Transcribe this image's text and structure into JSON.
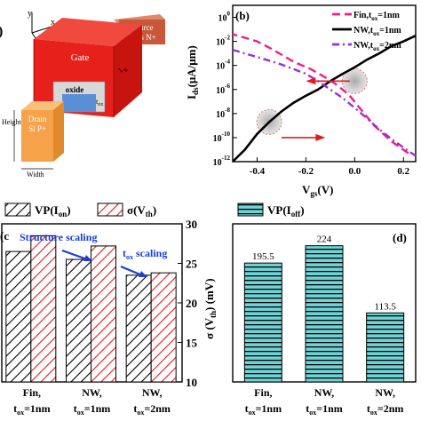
{
  "panel_a": {
    "partial_label": ")",
    "axis_x": "x",
    "axis_y": "y",
    "axis_z": "z",
    "source_line1": "Source",
    "source_line2": "InAs N+",
    "gate": "Gate",
    "oxide": "oxide",
    "t_ox": "t",
    "t_ox_sub": "ox",
    "drain_line1": "Drain",
    "drain_line2": "Si P+",
    "height": "Height",
    "width": "Width",
    "l_g": "L",
    "l_g_sub": "g",
    "colors": {
      "gate": "#e8201c",
      "drain": "#f5a24a",
      "source": "#c9573a",
      "oxide": "#d8d8d8",
      "body": "#5a8fd6"
    }
  },
  "chart_data": [
    {
      "panel": "(b)",
      "type": "line",
      "ylabel_main": "I",
      "ylabel_sub": "ds",
      "ylabel_unit": "(μA/μm)",
      "xlabel_main": "V",
      "xlabel_sub": "gs",
      "xlabel_unit": "(V)",
      "y_scale": "log",
      "ylim": [
        1e-12,
        10.0
      ],
      "xlim": [
        -0.5,
        0.25
      ],
      "x_ticks": [
        "-0.4",
        "-0.2",
        "0.0",
        "0.2"
      ],
      "y_ticks": [
        "10",
        "10",
        "10",
        "10",
        "10",
        "10",
        "10"
      ],
      "y_tick_exps": [
        "0",
        "-2",
        "-4",
        "-6",
        "-8",
        "-10",
        "-12"
      ],
      "legend_position": "top-right",
      "series": [
        {
          "name": "Fin,t",
          "name_sub": "ox",
          "name_tail": "=1nm",
          "color": "#ee1c8e",
          "dash": "dash",
          "x": [
            0.22,
            0.15,
            0.08,
            0.02,
            -0.02,
            -0.05,
            -0.08,
            -0.12,
            -0.18,
            -0.25,
            -0.3,
            -0.35,
            -0.4,
            -0.45,
            -0.5
          ],
          "y": [
            5e-12,
            5e-11,
            1e-09,
            3e-08,
            3e-07,
            1e-06,
            3e-06,
            1e-05,
            5e-05,
            0.0002,
            0.0008,
            0.003,
            0.01,
            0.02,
            0.04
          ]
        },
        {
          "name": "NW,t",
          "name_sub": "ox",
          "name_tail": "=1nm",
          "color": "#000000",
          "dash": "solid",
          "x": [
            -0.5,
            -0.45,
            -0.4,
            -0.35,
            -0.3,
            -0.25,
            -0.2,
            -0.15,
            -0.1,
            -0.05,
            0.0,
            0.05,
            0.1,
            0.15,
            0.2,
            0.25
          ],
          "y": [
            1e-12,
            1e-11,
            2e-10,
            2e-09,
            1.5e-08,
            8e-08,
            3e-07,
            1e-06,
            5e-06,
            2e-05,
            7e-05,
            0.0003,
            0.001,
            0.004,
            0.01,
            0.03
          ]
        },
        {
          "name": "NW,t",
          "name_sub": "ox",
          "name_tail": "=2nm",
          "color": "#9b30d9",
          "dash": "dashdot",
          "x": [
            -0.5,
            -0.45,
            -0.4,
            -0.35,
            -0.3,
            -0.25,
            -0.2,
            -0.15,
            -0.1,
            -0.05,
            0.0,
            0.05,
            0.1,
            0.15,
            0.2,
            0.25
          ],
          "y": [
            0.002,
            0.001,
            0.0005,
            0.00025,
            0.00012,
            5e-05,
            2e-05,
            5e-06,
            1e-06,
            2e-07,
            3e-08,
            4e-09,
            5e-10,
            8e-11,
            1.5e-11,
            3e-12
          ]
        }
      ]
    },
    {
      "panel": "(c)",
      "type": "bar",
      "categories": [
        "Fin,",
        "NW,",
        "NW,"
      ],
      "category_sub_main": [
        "t",
        "t",
        "t"
      ],
      "category_sub_sub": [
        "ox",
        "ox",
        "ox"
      ],
      "category_sub_tail": [
        "=1nm",
        "=1nm",
        "=2nm"
      ],
      "legend": [
        {
          "name": "VP(I",
          "sub": "on",
          "tail": ")",
          "pattern": "hatch-black"
        },
        {
          "name": "σ(V",
          "sub": "th",
          "tail": ")",
          "pattern": "hatch-red"
        }
      ],
      "ylabel_main": "σ (V",
      "ylabel_sub": "th",
      "ylabel_unit": ") (mV)",
      "ylim": [
        10,
        30
      ],
      "y_ticks": [
        "10",
        "15",
        "20",
        "25",
        "30"
      ],
      "series": [
        {
          "name": "VP(Ion)",
          "values": [
            26.5,
            25.5,
            23.5
          ]
        },
        {
          "name": "σ(Vth)",
          "values": [
            28.5,
            27.2,
            23.8
          ]
        }
      ],
      "annotations": [
        "Structure scaling",
        "t",
        "ox",
        " scaling"
      ],
      "partial_label": "(c"
    },
    {
      "panel": "(d)",
      "type": "bar",
      "categories": [
        "Fin,",
        "NW,",
        "NW,"
      ],
      "category_sub_main": [
        "t",
        "t",
        "t"
      ],
      "category_sub_sub": [
        "ox",
        "ox",
        "ox"
      ],
      "category_sub_tail": [
        "=1nm",
        "=1nm",
        "=2nm"
      ],
      "legend": [
        {
          "name": "VP(I",
          "sub": "off",
          "tail": ")",
          "pattern": "hatch-cyan"
        }
      ],
      "values": [
        195.5,
        224,
        113.5
      ],
      "value_labels": [
        "195.5",
        "224",
        "113.5"
      ],
      "ylim": [
        0,
        260
      ]
    }
  ]
}
